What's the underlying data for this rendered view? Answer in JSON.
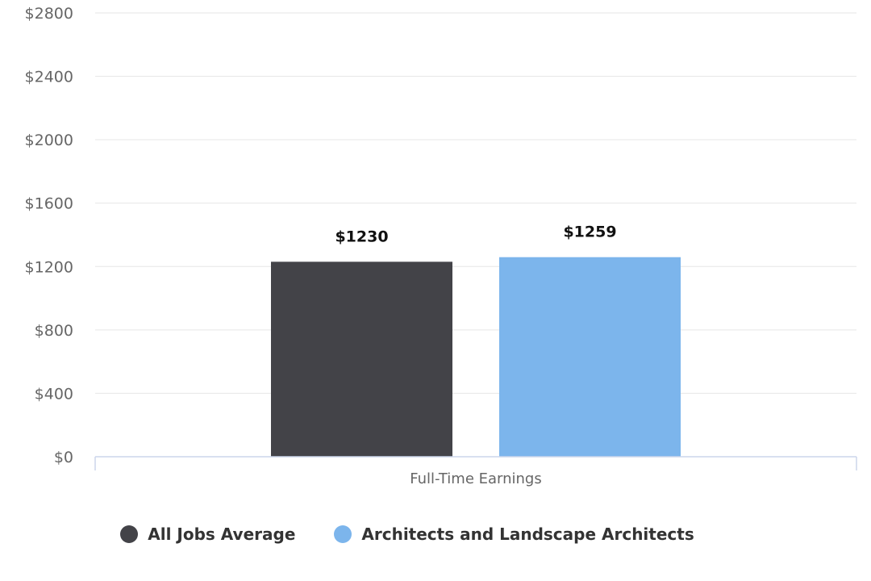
{
  "chart_data": {
    "type": "bar",
    "title": "",
    "xlabel": "",
    "ylabel": "",
    "categories": [
      "Full-Time Earnings"
    ],
    "ylim": [
      0,
      2800
    ],
    "yticks": [
      0,
      400,
      800,
      1200,
      1600,
      2000,
      2400,
      2800
    ],
    "ytick_labels": [
      "$0",
      "$400",
      "$800",
      "$1200",
      "$1600",
      "$2000",
      "$2400",
      "$2800"
    ],
    "grid": true,
    "legend_position": "bottom-center",
    "series": [
      {
        "name": "All Jobs Average",
        "values": [
          1230
        ],
        "data_labels": [
          "$1230"
        ],
        "color": "#434348"
      },
      {
        "name": "Architects and Landscape Architects",
        "values": [
          1259
        ],
        "data_labels": [
          "$1259"
        ],
        "color": "#7cb5ec"
      }
    ]
  },
  "legend": {
    "items": [
      {
        "label": "All Jobs Average",
        "color": "#434348"
      },
      {
        "label": "Architects and Landscape Architects",
        "color": "#7cb5ec"
      }
    ]
  }
}
